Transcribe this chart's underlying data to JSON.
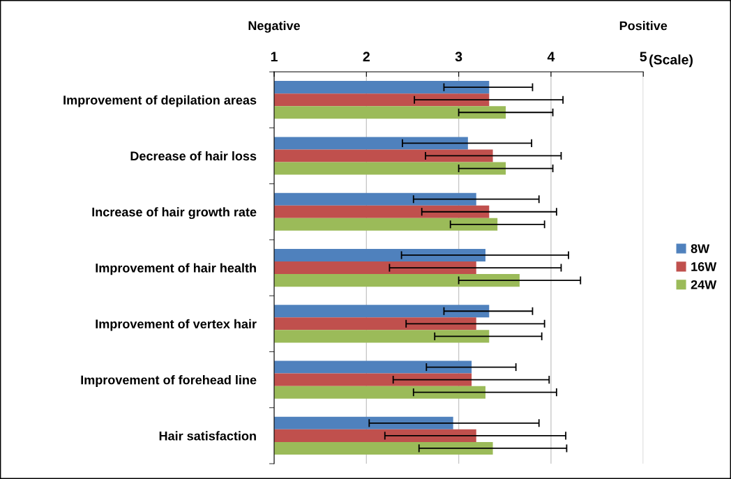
{
  "chart_data": {
    "type": "bar",
    "orientation": "horizontal",
    "categories": [
      "Improvement of depilation areas",
      "Decrease of hair loss",
      "Increase of hair growth rate",
      "Improvement of hair health",
      "Improvement of vertex hair",
      "Improvement of forehead line",
      "Hair satisfaction"
    ],
    "series": [
      {
        "name": "8W",
        "color": "#4f81bd",
        "values": [
          3.33,
          3.1,
          3.19,
          3.29,
          3.33,
          3.14,
          2.94
        ],
        "errors": [
          [
            2.84,
            3.8
          ],
          [
            2.39,
            3.79
          ],
          [
            2.51,
            3.87
          ],
          [
            2.38,
            4.19
          ],
          [
            2.84,
            3.8
          ],
          [
            2.65,
            3.62
          ],
          [
            2.03,
            3.87
          ]
        ]
      },
      {
        "name": "16W",
        "color": "#c0504d",
        "values": [
          3.33,
          3.37,
          3.33,
          3.19,
          3.19,
          3.14,
          3.19
        ],
        "errors": [
          [
            2.52,
            4.13
          ],
          [
            2.64,
            4.11
          ],
          [
            2.6,
            4.06
          ],
          [
            2.25,
            4.11
          ],
          [
            2.43,
            3.93
          ],
          [
            2.29,
            3.98
          ],
          [
            2.2,
            4.16
          ]
        ]
      },
      {
        "name": "24W",
        "color": "#9bbb59",
        "values": [
          3.51,
          3.51,
          3.42,
          3.66,
          3.33,
          3.29,
          3.37
        ],
        "errors": [
          [
            3.0,
            4.02
          ],
          [
            3.0,
            4.02
          ],
          [
            2.91,
            3.93
          ],
          [
            3.0,
            4.32
          ],
          [
            2.74,
            3.9
          ],
          [
            2.51,
            4.06
          ],
          [
            2.57,
            4.17
          ]
        ]
      }
    ],
    "xlim": [
      1,
      5
    ],
    "xticks": [
      1,
      2,
      3,
      4,
      5
    ],
    "xlabel": "(Scale)",
    "annotations": [
      "Negative",
      "Positive"
    ],
    "grid": "x",
    "legend": "right"
  }
}
